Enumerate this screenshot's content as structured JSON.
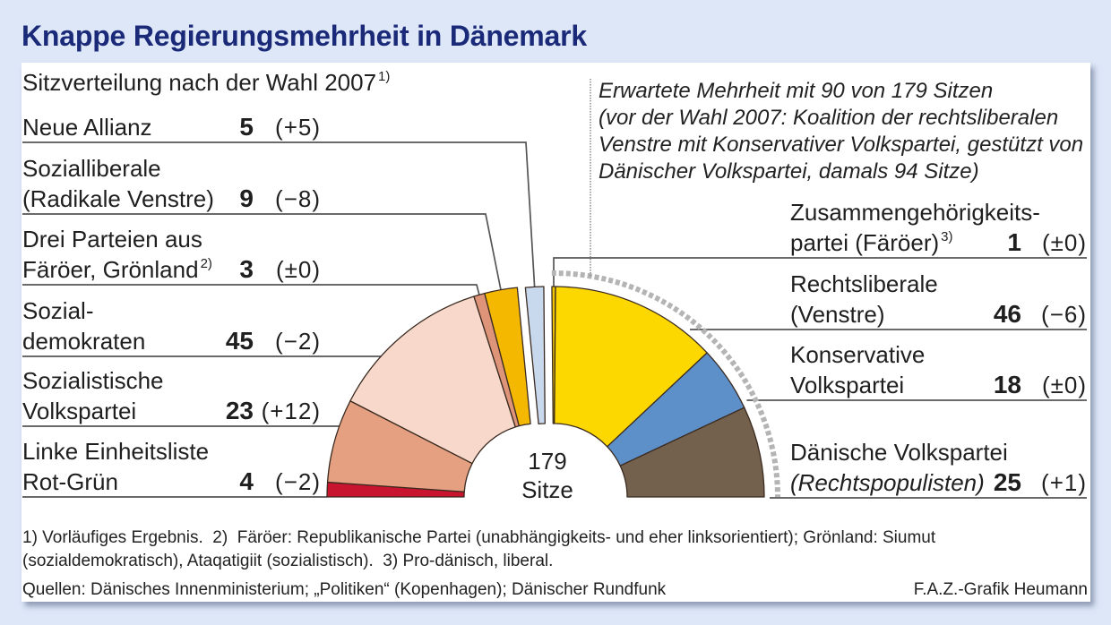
{
  "title": "Knappe Regierungsmehrheit in Dänemark",
  "majority_note": {
    "line1": "Erwartete Mehrheit mit 90 von 179 Sitzen",
    "line2": "(vor der Wahl 2007: Koalition der rechtsliberalen",
    "line3": "Venstre mit Konservativer Volkspartei, gestützt von",
    "line4": "Dänischer Volkspartei, damals 94 Sitze)"
  },
  "center_label": {
    "value": "179",
    "unit": "Sitze"
  },
  "footnotes": {
    "line1": "1) Vorläufiges Ergebnis.  2)  Färöer: Republikanische Partei (unabhängigkeits- und eher linksorientiert); Grönland: Siumut",
    "line2": "(sozialdemokratisch), Ataqatigiit (sozialistisch).  3) Pro-dänisch, liberal.",
    "sources": "Quellen: Dänisches Innenministerium; „Politiken“ (Kopenhagen); Dänischer Rundfunk",
    "credit": "F.A.Z.-Grafik Heumann"
  },
  "colors": {
    "title": "#1b2a78",
    "background": "#dde7f8",
    "majority_arc": "#b4b4b4",
    "outline": "#3a2a20",
    "leader": "#555555"
  },
  "chart_data": {
    "type": "pie",
    "title": "Sitzverteilung nach der Wahl 2007",
    "title_ref": "1)",
    "total_seats": 179,
    "majority_seats": 90,
    "parties": [
      {
        "line1": "Linke Einheitsliste",
        "line2": "Rot-Grün",
        "seats": 4,
        "change": "(−2)",
        "color": "#c8142e"
      },
      {
        "line1": "Sozialistische",
        "line2": "Volkspartei",
        "seats": 23,
        "change": "(+12)",
        "color": "#e4a081"
      },
      {
        "line1": "Sozial-",
        "line2": "demokraten",
        "seats": 45,
        "change": "(−2)",
        "color": "#f7d8cb"
      },
      {
        "line1": "Drei Parteien aus",
        "line2": "Färöer, Grönland",
        "ref": "2)",
        "seats": 3,
        "change": "(±0)",
        "color": "#de9478"
      },
      {
        "line1": "Sozialliberale",
        "line2": "(Radikale Venstre)",
        "seats": 9,
        "change": "(−8)",
        "color": "#f5b800"
      },
      {
        "line1": "Neue Allianz",
        "seats": 5,
        "change": "(+5)",
        "color": "#c9d9ed"
      },
      {
        "line1": "Zusammengehörigkeits-",
        "line2": "partei (Färöer)",
        "ref": "3)",
        "seats": 1,
        "change": "(±0)",
        "color": "#efc400"
      },
      {
        "line1": "Rechtsliberale",
        "line2": "(Venstre)",
        "seats": 46,
        "change": "(−6)",
        "color": "#fdd700"
      },
      {
        "line1": "Konservative",
        "line2": "Volkspartei",
        "seats": 18,
        "change": "(±0)",
        "color": "#5d8fc8"
      },
      {
        "line1": "Dänische Volkspartei",
        "line2": "(Rechtspopulisten)",
        "seats": 25,
        "change": "(+1)",
        "color": "#74614d"
      }
    ]
  }
}
